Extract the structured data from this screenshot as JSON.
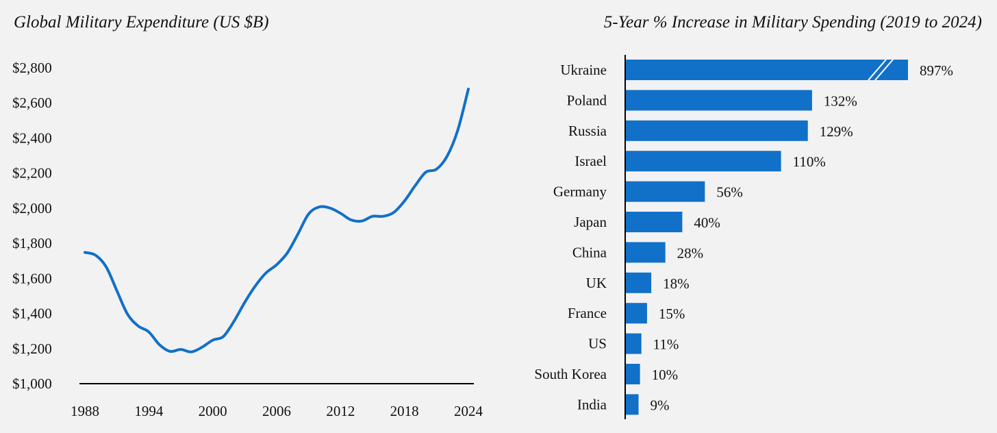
{
  "chart_data": [
    {
      "type": "line",
      "title": "Global Military Expenditure (US $B)",
      "xlabel": "",
      "ylabel": "",
      "ylim": [
        1000,
        2800
      ],
      "xlim": [
        1988,
        2024
      ],
      "x_ticks": [
        "1988",
        "1994",
        "2000",
        "2006",
        "2012",
        "2018",
        "2024"
      ],
      "y_ticks": [
        "$1,000",
        "$1,200",
        "$1,400",
        "$1,600",
        "$1,800",
        "$2,000",
        "$2,200",
        "$2,400",
        "$2,600",
        "$2,800"
      ],
      "y_tick_values": [
        1000,
        1200,
        1400,
        1600,
        1800,
        2000,
        2200,
        2400,
        2600,
        2800
      ],
      "grid": false,
      "color": "#1170c8",
      "x": [
        1988,
        1989,
        1990,
        1991,
        1992,
        1993,
        1994,
        1995,
        1996,
        1997,
        1998,
        1999,
        2000,
        2001,
        2002,
        2003,
        2004,
        2005,
        2006,
        2007,
        2008,
        2009,
        2010,
        2011,
        2012,
        2013,
        2014,
        2015,
        2016,
        2017,
        2018,
        2019,
        2020,
        2021,
        2022,
        2023,
        2024
      ],
      "values": [
        1748,
        1732,
        1665,
        1530,
        1396,
        1329,
        1295,
        1222,
        1184,
        1195,
        1181,
        1208,
        1248,
        1269,
        1356,
        1463,
        1557,
        1631,
        1678,
        1745,
        1853,
        1967,
        2007,
        2001,
        1971,
        1933,
        1927,
        1954,
        1954,
        1976,
        2041,
        2128,
        2205,
        2222,
        2296,
        2444,
        2679
      ]
    },
    {
      "type": "bar",
      "orientation": "horizontal",
      "title": "5-Year % Increase in Military Spending (2019 to 2024)",
      "color": "#1170c8",
      "categories": [
        "Ukraine",
        "Poland",
        "Russia",
        "Israel",
        "Germany",
        "Japan",
        "China",
        "UK",
        "France",
        "US",
        "South Korea",
        "India"
      ],
      "values": [
        897,
        132,
        129,
        110,
        56,
        40,
        28,
        18,
        15,
        11,
        10,
        9
      ],
      "labels": [
        "897%",
        "132%",
        "129%",
        "110%",
        "56%",
        "40%",
        "28%",
        "18%",
        "15%",
        "11%",
        "10%",
        "9%"
      ],
      "axis_break": {
        "category": "Ukraine",
        "display_cap": 200
      }
    }
  ]
}
